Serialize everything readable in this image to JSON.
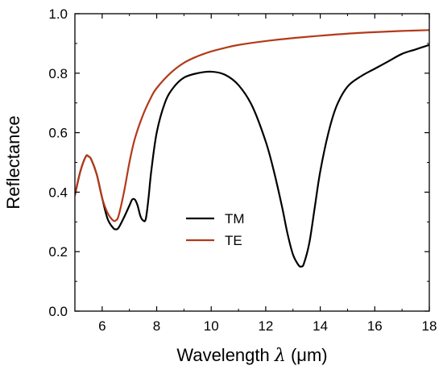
{
  "chart_data": {
    "type": "line",
    "xlabel": "Wavelength",
    "xlabel_symbol": "λ",
    "xlabel_unit": "(μm)",
    "ylabel": "Reflectance",
    "xlim": [
      5,
      18
    ],
    "ylim": [
      0.0,
      1.0
    ],
    "x_ticks": [
      6,
      8,
      10,
      12,
      14,
      16,
      18
    ],
    "x_tick_labels": [
      "6",
      "8",
      "10",
      "12",
      "14",
      "16",
      "18"
    ],
    "y_ticks": [
      0.0,
      0.2,
      0.4,
      0.6,
      0.8,
      1.0
    ],
    "y_tick_labels": [
      "0.0",
      "0.2",
      "0.4",
      "0.6",
      "0.8",
      "1.0"
    ],
    "grid": false,
    "legend_position": "center",
    "series": [
      {
        "name": "TM",
        "color": "#000000",
        "x": [
          5.0,
          5.2,
          5.4,
          5.5,
          5.6,
          5.8,
          6.0,
          6.2,
          6.4,
          6.5,
          6.6,
          6.8,
          7.0,
          7.1,
          7.2,
          7.3,
          7.4,
          7.5,
          7.6,
          7.7,
          7.8,
          8.0,
          8.3,
          8.6,
          9.0,
          9.5,
          10.0,
          10.5,
          11.0,
          11.5,
          12.0,
          12.3,
          12.6,
          12.8,
          13.0,
          13.2,
          13.3,
          13.4,
          13.6,
          13.8,
          14.0,
          14.3,
          14.6,
          15.0,
          15.5,
          16.0,
          16.5,
          17.0,
          17.5,
          18.0
        ],
        "y": [
          0.39,
          0.47,
          0.52,
          0.52,
          0.51,
          0.46,
          0.38,
          0.31,
          0.28,
          0.275,
          0.28,
          0.315,
          0.355,
          0.375,
          0.375,
          0.355,
          0.32,
          0.305,
          0.31,
          0.38,
          0.47,
          0.6,
          0.7,
          0.75,
          0.785,
          0.8,
          0.805,
          0.795,
          0.76,
          0.69,
          0.57,
          0.47,
          0.35,
          0.26,
          0.19,
          0.155,
          0.15,
          0.16,
          0.23,
          0.35,
          0.47,
          0.6,
          0.69,
          0.755,
          0.79,
          0.815,
          0.84,
          0.865,
          0.88,
          0.895
        ]
      },
      {
        "name": "TE",
        "color": "#b33a1a",
        "x": [
          5.0,
          5.2,
          5.4,
          5.5,
          5.6,
          5.8,
          6.0,
          6.2,
          6.4,
          6.5,
          6.6,
          6.8,
          7.0,
          7.2,
          7.5,
          7.8,
          8.0,
          8.5,
          9.0,
          9.5,
          10.0,
          10.5,
          11.0,
          12.0,
          13.0,
          14.0,
          15.0,
          16.0,
          17.0,
          18.0
        ],
        "y": [
          0.39,
          0.47,
          0.52,
          0.52,
          0.51,
          0.46,
          0.38,
          0.33,
          0.305,
          0.305,
          0.32,
          0.4,
          0.5,
          0.58,
          0.66,
          0.72,
          0.75,
          0.8,
          0.835,
          0.857,
          0.873,
          0.885,
          0.895,
          0.908,
          0.918,
          0.926,
          0.933,
          0.938,
          0.942,
          0.945
        ]
      }
    ]
  }
}
